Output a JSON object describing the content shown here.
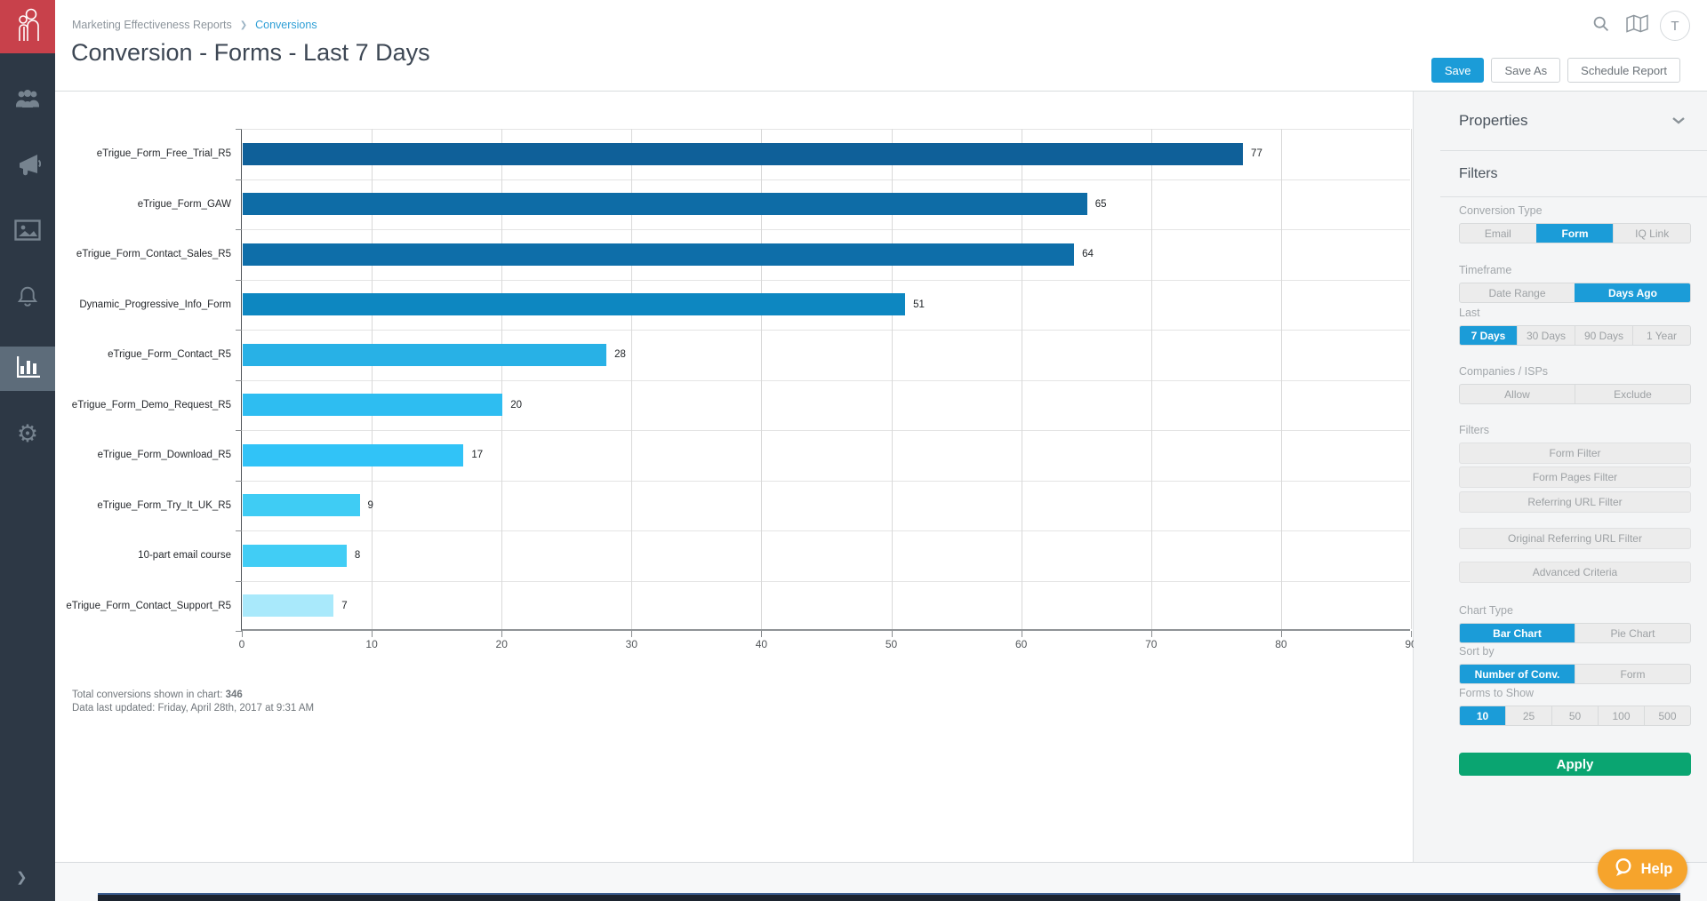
{
  "colors": {
    "accent_blue": "#1b9cd8",
    "link_blue": "#2f9fd6",
    "apply_green": "#0aa571",
    "help_orange": "#f6a42c",
    "sidebar_bg": "#2d3845",
    "sidebar_active_bg": "#5d6c7a",
    "logo_red": "#c8414b"
  },
  "header": {
    "breadcrumb": {
      "parent": "Marketing Effectiveness Reports",
      "current": "Conversions"
    },
    "title": "Conversion - Forms - Last 7 Days",
    "buttons": {
      "save": "Save",
      "save_as": "Save As",
      "schedule": "Schedule Report"
    },
    "icons": [
      "search-icon",
      "map-icon"
    ],
    "avatar_initial": "T"
  },
  "sidebar": {
    "icons": [
      "people-icon",
      "megaphone-icon",
      "image-icon",
      "bell-icon",
      "bar-chart-icon",
      "gear-icon"
    ],
    "active_icon": "bar-chart-icon"
  },
  "chart_data": {
    "type": "bar",
    "orientation": "horizontal",
    "categories": [
      "eTrigue_Form_Free_Trial_R5",
      "eTrigue_Form_GAW",
      "eTrigue_Form_Contact_Sales_R5",
      "Dynamic_Progressive_Info_Form",
      "eTrigue_Form_Contact_R5",
      "eTrigue_Form_Demo_Request_R5",
      "eTrigue_Form_Download_R5",
      "eTrigue_Form_Try_It_UK_R5",
      "10-part email course",
      "eTrigue_Form_Contact_Support_R5"
    ],
    "values": [
      77,
      65,
      64,
      51,
      28,
      20,
      17,
      9,
      8,
      7
    ],
    "bar_colors": [
      "#0f6099",
      "#0e6ca6",
      "#0e6ea9",
      "#0d87c1",
      "#28b1e6",
      "#2ebdf1",
      "#31c3f7",
      "#3fccf4",
      "#41cdf5",
      "#a9e9fb"
    ],
    "xlim": [
      0,
      90
    ],
    "x_ticks": [
      0,
      10,
      20,
      30,
      40,
      50,
      60,
      70,
      80,
      90
    ],
    "grid": true,
    "legend": "none",
    "value_labels": true
  },
  "chart_footer": {
    "total_label": "Total conversions shown in chart:",
    "total_value": "346",
    "last_updated": "Data last updated: Friday, April 28th, 2017 at 9:31 AM"
  },
  "panel": {
    "title": "Properties",
    "section_title": "Filters",
    "groups": {
      "conversion_type": {
        "label": "Conversion Type",
        "options": [
          "Email",
          "Form",
          "IQ Link"
        ],
        "active": 1
      },
      "timeframe": {
        "label": "Timeframe",
        "options": [
          "Date Range",
          "Days Ago"
        ],
        "active": 1
      },
      "last": {
        "label": "Last",
        "options": [
          "7 Days",
          "30 Days",
          "90 Days",
          "1 Year"
        ],
        "active": 0
      },
      "companies_isps": {
        "label": "Companies / ISPs",
        "options": [
          "Allow",
          "Exclude"
        ],
        "active": -1
      },
      "chart_type": {
        "label": "Chart Type",
        "options": [
          "Bar Chart",
          "Pie Chart"
        ],
        "active": 0
      },
      "sort_by": {
        "label": "Sort by",
        "options": [
          "Number of Conv.",
          "Form"
        ],
        "active": 0
      },
      "forms_to_show": {
        "label": "Forms to Show",
        "options": [
          "10",
          "25",
          "50",
          "100",
          "500"
        ],
        "active": 0
      }
    },
    "filter_buttons": {
      "label": "Filters",
      "buttons": [
        "Form Filter",
        "Form Pages Filter",
        "Referring URL Filter",
        "Original Referring URL Filter",
        "Advanced Criteria"
      ]
    },
    "apply_label": "Apply"
  },
  "help_label": "Help"
}
